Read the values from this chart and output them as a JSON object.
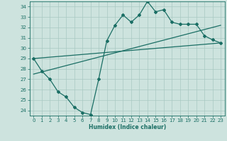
{
  "title": "",
  "xlabel": "Humidex (Indice chaleur)",
  "ylabel": "",
  "xlim": [
    -0.5,
    23.5
  ],
  "ylim": [
    23.5,
    34.5
  ],
  "xticks": [
    0,
    1,
    2,
    3,
    4,
    5,
    6,
    7,
    8,
    9,
    10,
    11,
    12,
    13,
    14,
    15,
    16,
    17,
    18,
    19,
    20,
    21,
    22,
    23
  ],
  "yticks": [
    24,
    25,
    26,
    27,
    28,
    29,
    30,
    31,
    32,
    33,
    34
  ],
  "bg_color": "#cde3de",
  "grid_color": "#a8c8c2",
  "line_color": "#1a6e64",
  "line1_x": [
    0,
    1,
    2,
    3,
    4,
    5,
    6,
    7,
    8,
    9,
    10,
    11,
    12,
    13,
    14,
    15,
    16,
    17,
    18,
    19,
    20,
    21,
    22,
    23
  ],
  "line1_y": [
    29.0,
    27.8,
    27.0,
    25.8,
    25.3,
    24.3,
    23.8,
    23.6,
    27.0,
    30.7,
    32.2,
    33.2,
    32.5,
    33.2,
    34.5,
    33.5,
    33.7,
    32.5,
    32.3,
    32.3,
    32.3,
    31.2,
    30.8,
    30.5
  ],
  "line2_x": [
    0,
    23
  ],
  "line2_y": [
    29.0,
    30.5
  ],
  "line3_x": [
    0,
    23
  ],
  "line3_y": [
    27.5,
    32.2
  ],
  "figsize": [
    3.2,
    2.0
  ],
  "dpi": 100
}
